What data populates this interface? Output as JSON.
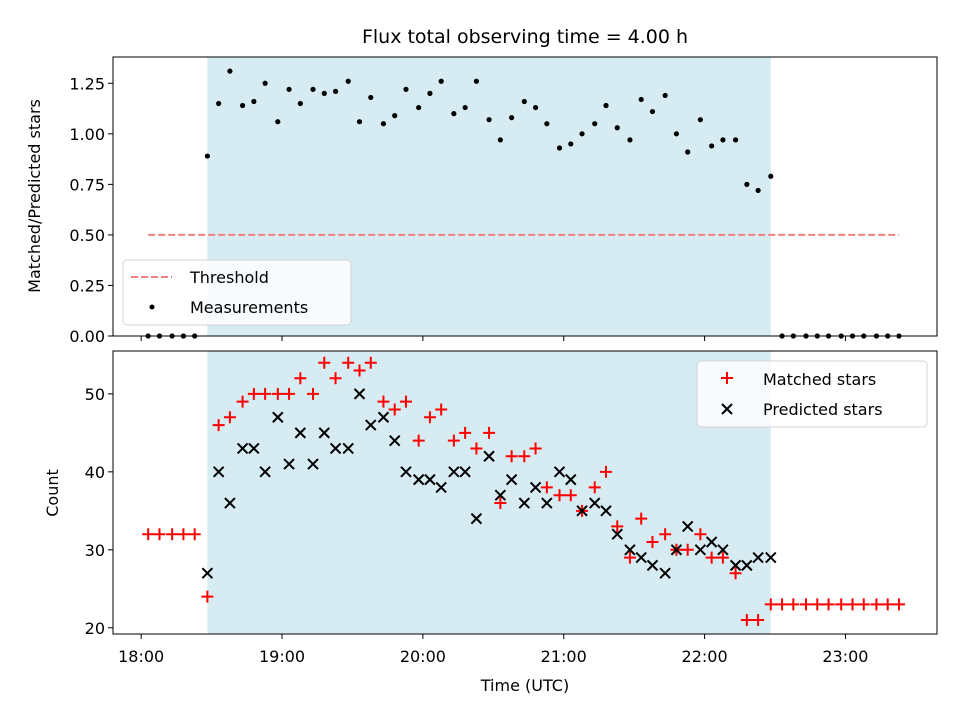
{
  "chart_data": {
    "type": "scatter",
    "title": "Flux total observing time = 4.00 h",
    "xlabel": "Time (UTC)",
    "x_unit": "hours",
    "x_tick_values": [
      18,
      19,
      20,
      21,
      22,
      23
    ],
    "x_tick_labels": [
      "18:00",
      "19:00",
      "20:00",
      "21:00",
      "22:00",
      "23:00"
    ],
    "xlim": [
      17.8,
      23.65
    ],
    "shaded_interval": [
      18.47,
      22.47
    ],
    "top_panel": {
      "ylabel": "Matched/Predicted stars",
      "ylim": [
        0,
        1.38
      ],
      "y_tick_values": [
        0,
        0.25,
        0.5,
        0.75,
        1.0,
        1.25
      ],
      "y_tick_labels": [
        "0.00",
        "0.25",
        "0.50",
        "0.75",
        "1.00",
        "1.25"
      ],
      "threshold": {
        "name": "Threshold",
        "value": 0.5,
        "x_range": [
          18.05,
          23.38
        ],
        "color": "#f08080"
      },
      "measurements": {
        "name": "Measurements",
        "color": "#000000",
        "x": [
          18.05,
          18.13,
          18.22,
          18.3,
          18.38,
          18.47,
          18.55,
          18.63,
          18.72,
          18.8,
          18.88,
          18.97,
          19.05,
          19.13,
          19.22,
          19.3,
          19.38,
          19.47,
          19.55,
          19.63,
          19.72,
          19.8,
          19.88,
          19.97,
          20.05,
          20.13,
          20.22,
          20.3,
          20.38,
          20.47,
          20.55,
          20.63,
          20.72,
          20.8,
          20.88,
          20.97,
          21.05,
          21.13,
          21.22,
          21.3,
          21.38,
          21.47,
          21.55,
          21.63,
          21.72,
          21.8,
          21.88,
          21.97,
          22.05,
          22.13,
          22.22,
          22.3,
          22.38,
          22.47,
          22.55,
          22.63,
          22.72,
          22.8,
          22.88,
          22.97,
          23.05,
          23.13,
          23.22,
          23.3,
          23.38
        ],
        "y": [
          0,
          0,
          0,
          0,
          0,
          0.89,
          1.15,
          1.31,
          1.14,
          1.16,
          1.25,
          1.06,
          1.22,
          1.15,
          1.22,
          1.2,
          1.21,
          1.26,
          1.06,
          1.18,
          1.05,
          1.09,
          1.22,
          1.13,
          1.2,
          1.26,
          1.1,
          1.13,
          1.26,
          1.07,
          0.97,
          1.08,
          1.16,
          1.13,
          1.05,
          0.93,
          0.95,
          1.0,
          1.05,
          1.14,
          1.03,
          0.97,
          1.17,
          1.11,
          1.19,
          1.0,
          0.91,
          1.07,
          0.94,
          0.97,
          0.97,
          0.75,
          0.72,
          0.79,
          0,
          0,
          0,
          0,
          0,
          0,
          0,
          0,
          0,
          0,
          0
        ]
      },
      "legend_position": "lower-left"
    },
    "bottom_panel": {
      "ylabel": "Count",
      "ylim": [
        19.2,
        55.5
      ],
      "y_tick_values": [
        20,
        30,
        40,
        50
      ],
      "y_tick_labels": [
        "20",
        "30",
        "40",
        "50"
      ],
      "series": [
        {
          "name": "Matched stars",
          "marker": "plus",
          "color": "#ff0000",
          "x": [
            18.05,
            18.13,
            18.22,
            18.3,
            18.38,
            18.47,
            18.55,
            18.63,
            18.72,
            18.8,
            18.88,
            18.97,
            19.05,
            19.13,
            19.22,
            19.3,
            19.38,
            19.47,
            19.55,
            19.63,
            19.72,
            19.8,
            19.88,
            19.97,
            20.05,
            20.13,
            20.22,
            20.3,
            20.38,
            20.47,
            20.55,
            20.63,
            20.72,
            20.8,
            20.88,
            20.97,
            21.05,
            21.13,
            21.22,
            21.3,
            21.38,
            21.47,
            21.55,
            21.63,
            21.72,
            21.8,
            21.88,
            21.97,
            22.05,
            22.13,
            22.22,
            22.3,
            22.38,
            22.47,
            22.55,
            22.63,
            22.72,
            22.8,
            22.88,
            22.97,
            23.05,
            23.13,
            23.22,
            23.3,
            23.38
          ],
          "y": [
            32,
            32,
            32,
            32,
            32,
            24,
            46,
            47,
            49,
            50,
            50,
            50,
            50,
            52,
            50,
            54,
            52,
            54,
            53,
            54,
            49,
            48,
            49,
            44,
            47,
            48,
            44,
            45,
            43,
            45,
            36,
            42,
            42,
            43,
            38,
            37,
            37,
            35,
            38,
            40,
            33,
            29,
            34,
            31,
            32,
            30,
            30,
            32,
            29,
            29,
            27,
            21,
            21,
            23,
            23,
            23,
            23,
            23,
            23,
            23,
            23,
            23,
            23,
            23,
            23
          ]
        },
        {
          "name": "Predicted stars",
          "marker": "x",
          "color": "#000000",
          "x": [
            18.47,
            18.55,
            18.63,
            18.72,
            18.8,
            18.88,
            18.97,
            19.05,
            19.13,
            19.22,
            19.3,
            19.38,
            19.47,
            19.55,
            19.63,
            19.72,
            19.8,
            19.88,
            19.97,
            20.05,
            20.13,
            20.22,
            20.3,
            20.38,
            20.47,
            20.55,
            20.63,
            20.72,
            20.8,
            20.88,
            20.97,
            21.05,
            21.13,
            21.22,
            21.3,
            21.38,
            21.47,
            21.55,
            21.63,
            21.72,
            21.8,
            21.88,
            21.97,
            22.05,
            22.13,
            22.22,
            22.3,
            22.38,
            22.47
          ],
          "y": [
            27,
            40,
            36,
            43,
            43,
            40,
            47,
            41,
            45,
            41,
            45,
            43,
            43,
            50,
            46,
            47,
            44,
            40,
            39,
            39,
            38,
            40,
            40,
            34,
            42,
            37,
            39,
            36,
            38,
            36,
            40,
            39,
            35,
            36,
            35,
            32,
            30,
            29,
            28,
            27,
            30,
            33,
            30,
            31,
            30,
            28,
            28,
            29,
            29
          ]
        }
      ],
      "legend_position": "upper-right"
    },
    "colors": {
      "shade": "#add8e6",
      "threshold": "#f08080",
      "matched": "#ff0000",
      "predicted": "#000000"
    }
  }
}
